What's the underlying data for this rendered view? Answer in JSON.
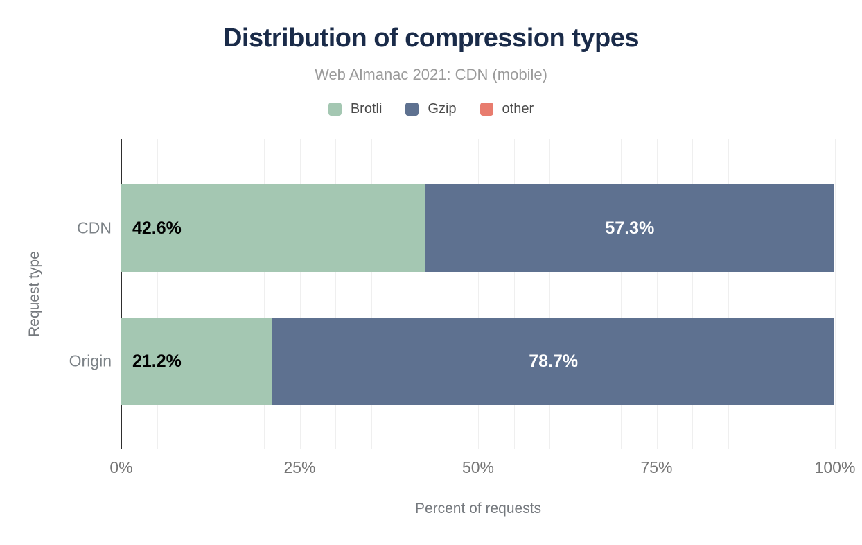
{
  "chart_data": {
    "type": "bar",
    "orientation": "horizontal",
    "stacked": true,
    "title": "Distribution of compression types",
    "subtitle": "Web Almanac 2021: CDN (mobile)",
    "xlabel": "Percent of requests",
    "ylabel": "Request type",
    "categories": [
      "CDN",
      "Origin"
    ],
    "series": [
      {
        "name": "Brotli",
        "color": "#a4c7b2",
        "values": [
          42.6,
          21.2
        ],
        "labels": [
          "42.6%",
          "21.2%"
        ],
        "label_color": "#000000",
        "label_align": "left"
      },
      {
        "name": "Gzip",
        "color": "#5e7190",
        "values": [
          57.3,
          78.7
        ],
        "labels": [
          "57.3%",
          "78.7%"
        ],
        "label_color": "#ffffff",
        "label_align": "center"
      },
      {
        "name": "other",
        "color": "#e87c6e",
        "values": [
          0.1,
          0.1
        ],
        "labels": [
          "",
          ""
        ],
        "label_color": "#000000",
        "label_align": "center"
      }
    ],
    "xlim": [
      0,
      100
    ],
    "x_ticks": [
      {
        "pos": 0,
        "label": "0%"
      },
      {
        "pos": 25,
        "label": "25%"
      },
      {
        "pos": 50,
        "label": "50%"
      },
      {
        "pos": 75,
        "label": "75%"
      },
      {
        "pos": 100,
        "label": "100%"
      }
    ],
    "minor_gridline_step": 5,
    "grid": true,
    "legend_position": "top"
  },
  "theme": {
    "background": "#ffffff",
    "title_color": "#1a2b49",
    "subtitle_color": "#9a9a9a",
    "axis_text_color": "#757575",
    "legend_text_color": "#4a4a4a",
    "gridline_color": "#efefef",
    "axis_line_color": "#2e2e2e"
  }
}
